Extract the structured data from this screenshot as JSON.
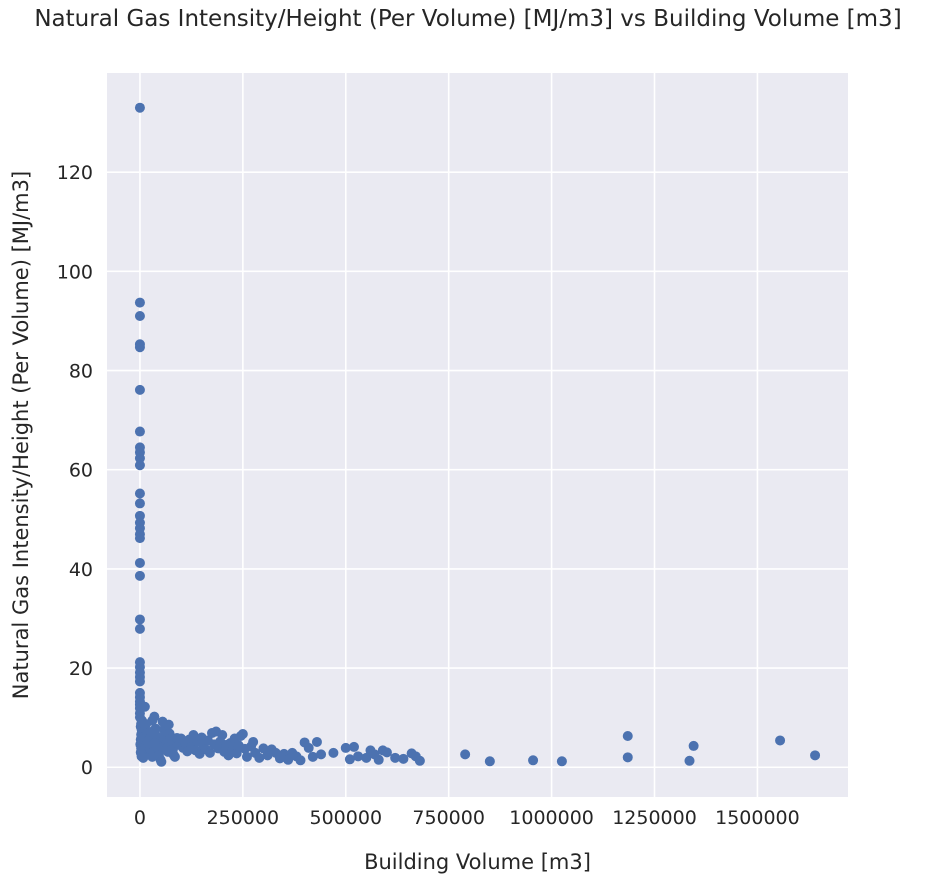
{
  "chart_data": {
    "type": "scatter",
    "title": "Natural Gas Intensity/Height (Per Volume)  [MJ/m3] vs Building Volume [m3]",
    "xlabel": "Building Volume [m3]",
    "ylabel": "Natural Gas Intensity/Height (Per Volume)  [MJ/m3]",
    "xlim": [
      -80000,
      1720000
    ],
    "ylim": [
      -6,
      140
    ],
    "xticks": [
      0,
      250000,
      500000,
      750000,
      1000000,
      1250000,
      1500000
    ],
    "xtick_labels": [
      "0",
      "250000",
      "500000",
      "750000",
      "1000000",
      "1250000",
      "1500000"
    ],
    "yticks": [
      0,
      20,
      40,
      60,
      80,
      100,
      120
    ],
    "ytick_labels": [
      "0",
      "20",
      "40",
      "60",
      "80",
      "100",
      "120"
    ],
    "grid": true,
    "background": "#eaeaf2",
    "marker_color": "#4c72b0",
    "series": [
      {
        "points": [
          [
            0,
            133
          ],
          [
            0,
            93.7
          ],
          [
            0,
            91
          ],
          [
            0,
            85.3
          ],
          [
            0,
            84.7
          ],
          [
            0,
            76.1
          ],
          [
            0,
            67.7
          ],
          [
            0,
            64.5
          ],
          [
            0,
            63.5
          ],
          [
            0,
            62.3
          ],
          [
            0,
            60.9
          ],
          [
            0,
            55.2
          ],
          [
            0,
            53.2
          ],
          [
            0,
            50.7
          ],
          [
            0,
            49.3
          ],
          [
            0,
            48.2
          ],
          [
            0,
            47
          ],
          [
            0,
            46.2
          ],
          [
            0,
            41.2
          ],
          [
            0,
            38.6
          ],
          [
            0,
            29.8
          ],
          [
            0,
            27.9
          ],
          [
            0,
            21.2
          ],
          [
            0,
            20.2
          ],
          [
            0,
            19.1
          ],
          [
            0,
            18.2
          ],
          [
            0,
            17.3
          ],
          [
            0,
            15
          ],
          [
            0,
            14.1
          ],
          [
            0,
            13.2
          ],
          [
            0,
            12.6
          ],
          [
            0,
            11.9
          ],
          [
            0,
            10.9
          ],
          [
            0,
            10.1
          ],
          [
            5000,
            9.4
          ],
          [
            3000,
            8.8
          ],
          [
            2000,
            8.2
          ],
          [
            4000,
            7.6
          ],
          [
            6000,
            7.1
          ],
          [
            3000,
            6.6
          ],
          [
            8000,
            6.1
          ],
          [
            2000,
            5.6
          ],
          [
            5000,
            5.1
          ],
          [
            1000,
            4.6
          ],
          [
            7000,
            4.2
          ],
          [
            3000,
            3.8
          ],
          [
            9000,
            3.4
          ],
          [
            2000,
            3
          ],
          [
            5000,
            2.6
          ],
          [
            4000,
            2.2
          ],
          [
            8000,
            1.9
          ],
          [
            12000,
            12.2
          ],
          [
            15000,
            8.7
          ],
          [
            18000,
            6.9
          ],
          [
            20000,
            5.4
          ],
          [
            22000,
            4.6
          ],
          [
            25000,
            3.7
          ],
          [
            28000,
            2.9
          ],
          [
            30000,
            2.1
          ],
          [
            35000,
            10.2
          ],
          [
            38000,
            7.8
          ],
          [
            40000,
            6.3
          ],
          [
            42000,
            5.1
          ],
          [
            45000,
            4.2
          ],
          [
            48000,
            3.3
          ],
          [
            50000,
            1.5
          ],
          [
            30000,
            9.4
          ],
          [
            26000,
            7.1
          ],
          [
            34000,
            5.7
          ],
          [
            36000,
            4.9
          ],
          [
            44000,
            3.8
          ],
          [
            46000,
            2.4
          ],
          [
            52000,
            1.1
          ],
          [
            55000,
            9.2
          ],
          [
            58000,
            7.6
          ],
          [
            60000,
            6.4
          ],
          [
            62000,
            5.5
          ],
          [
            64000,
            4.8
          ],
          [
            66000,
            3.9
          ],
          [
            68000,
            3.1
          ],
          [
            70000,
            8.6
          ],
          [
            72000,
            6.8
          ],
          [
            75000,
            5.7
          ],
          [
            78000,
            4.7
          ],
          [
            80000,
            3.6
          ],
          [
            82000,
            2.5
          ],
          [
            85000,
            2.1
          ],
          [
            90000,
            5.9
          ],
          [
            95000,
            4.5
          ],
          [
            100000,
            5.8
          ],
          [
            105000,
            3.9
          ],
          [
            110000,
            4.8
          ],
          [
            115000,
            3.2
          ],
          [
            120000,
            5.6
          ],
          [
            125000,
            4.1
          ],
          [
            130000,
            6.5
          ],
          [
            135000,
            3.4
          ],
          [
            140000,
            5.1
          ],
          [
            145000,
            2.7
          ],
          [
            150000,
            6
          ],
          [
            155000,
            4.3
          ],
          [
            160000,
            3.6
          ],
          [
            165000,
            5.4
          ],
          [
            170000,
            2.9
          ],
          [
            175000,
            6.9
          ],
          [
            180000,
            4.6
          ],
          [
            185000,
            7.2
          ],
          [
            190000,
            3.8
          ],
          [
            195000,
            5.2
          ],
          [
            200000,
            6.5
          ],
          [
            205000,
            3.1
          ],
          [
            210000,
            4.5
          ],
          [
            215000,
            2.4
          ],
          [
            220000,
            4.9
          ],
          [
            225000,
            3.3
          ],
          [
            230000,
            5.8
          ],
          [
            235000,
            2.8
          ],
          [
            240000,
            4.4
          ],
          [
            245000,
            6.3
          ],
          [
            250000,
            6.7
          ],
          [
            255000,
            3.7
          ],
          [
            260000,
            2.1
          ],
          [
            270000,
            4.2
          ],
          [
            275000,
            5.1
          ],
          [
            280000,
            2.9
          ],
          [
            290000,
            1.9
          ],
          [
            300000,
            3.8
          ],
          [
            310000,
            2.4
          ],
          [
            320000,
            3.6
          ],
          [
            330000,
            2.9
          ],
          [
            340000,
            1.8
          ],
          [
            350000,
            2.7
          ],
          [
            360000,
            1.5
          ],
          [
            370000,
            2.9
          ],
          [
            380000,
            2.2
          ],
          [
            390000,
            1.4
          ],
          [
            400000,
            5
          ],
          [
            410000,
            3.9
          ],
          [
            420000,
            2.1
          ],
          [
            430000,
            5.1
          ],
          [
            440000,
            2.6
          ],
          [
            470000,
            2.9
          ],
          [
            500000,
            3.9
          ],
          [
            510000,
            1.6
          ],
          [
            520000,
            4.1
          ],
          [
            530000,
            2.2
          ],
          [
            550000,
            1.9
          ],
          [
            560000,
            3.4
          ],
          [
            570000,
            2.6
          ],
          [
            580000,
            1.5
          ],
          [
            590000,
            3.4
          ],
          [
            600000,
            3
          ],
          [
            620000,
            1.9
          ],
          [
            640000,
            1.7
          ],
          [
            660000,
            2.8
          ],
          [
            670000,
            2.2
          ],
          [
            680000,
            1.3
          ],
          [
            790000,
            2.6
          ],
          [
            850000,
            1.2
          ],
          [
            955000,
            1.4
          ],
          [
            1025000,
            1.2
          ],
          [
            1185000,
            6.3
          ],
          [
            1185000,
            2
          ],
          [
            1335000,
            1.3
          ],
          [
            1345000,
            4.3
          ],
          [
            1555000,
            5.4
          ],
          [
            1640000,
            2.4
          ]
        ]
      }
    ]
  }
}
